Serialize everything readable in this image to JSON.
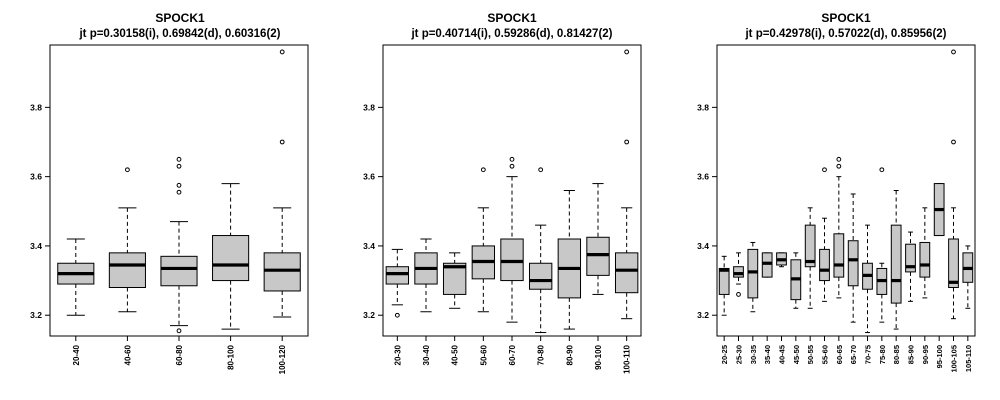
{
  "chart_data": [
    {
      "type": "boxplot",
      "title": "SPOCK1",
      "subtitle": "jt p=0.30158(i), 0.69842(d), 0.60316(2)",
      "xlabel": "",
      "ylabel": "",
      "ylim": [
        3.14,
        3.98
      ],
      "yticks": [
        "3.2",
        "3.4",
        "3.6",
        "3.8"
      ],
      "categories": [
        "20-40",
        "40-60",
        "60-80",
        "80-100",
        "100-120"
      ],
      "boxes": [
        {
          "min": 3.2,
          "q1": 3.29,
          "median": 3.32,
          "q3": 3.35,
          "max": 3.42,
          "outliers": []
        },
        {
          "min": 3.21,
          "q1": 3.28,
          "median": 3.345,
          "q3": 3.38,
          "max": 3.51,
          "outliers": [
            3.62
          ]
        },
        {
          "min": 3.17,
          "q1": 3.285,
          "median": 3.335,
          "q3": 3.37,
          "max": 3.47,
          "outliers": [
            3.155,
            3.555,
            3.575,
            3.63,
            3.65
          ]
        },
        {
          "min": 3.16,
          "q1": 3.3,
          "median": 3.345,
          "q3": 3.43,
          "max": 3.58,
          "outliers": []
        },
        {
          "min": 3.195,
          "q1": 3.27,
          "median": 3.33,
          "q3": 3.38,
          "max": 3.51,
          "outliers": [
            3.7,
            3.96
          ]
        }
      ]
    },
    {
      "type": "boxplot",
      "title": "SPOCK1",
      "subtitle": "jt p=0.40714(i), 0.59286(d), 0.81427(2)",
      "xlabel": "",
      "ylabel": "",
      "ylim": [
        3.14,
        3.98
      ],
      "yticks": [
        "3.2",
        "3.4",
        "3.6",
        "3.8"
      ],
      "categories": [
        "20-30",
        "30-40",
        "40-50",
        "50-60",
        "60-70",
        "70-80",
        "80-90",
        "90-100",
        "100-110"
      ],
      "boxes": [
        {
          "min": 3.23,
          "q1": 3.29,
          "median": 3.32,
          "q3": 3.34,
          "max": 3.39,
          "outliers": [
            3.2
          ]
        },
        {
          "min": 3.21,
          "q1": 3.29,
          "median": 3.335,
          "q3": 3.38,
          "max": 3.42,
          "outliers": []
        },
        {
          "min": 3.22,
          "q1": 3.26,
          "median": 3.34,
          "q3": 3.35,
          "max": 3.38,
          "outliers": []
        },
        {
          "min": 3.21,
          "q1": 3.305,
          "median": 3.355,
          "q3": 3.4,
          "max": 3.51,
          "outliers": [
            3.62
          ]
        },
        {
          "min": 3.18,
          "q1": 3.3,
          "median": 3.355,
          "q3": 3.42,
          "max": 3.6,
          "outliers": [
            3.63,
            3.65
          ]
        },
        {
          "min": 3.15,
          "q1": 3.275,
          "median": 3.3,
          "q3": 3.35,
          "max": 3.46,
          "outliers": [
            3.62
          ]
        },
        {
          "min": 3.16,
          "q1": 3.25,
          "median": 3.335,
          "q3": 3.42,
          "max": 3.56,
          "outliers": []
        },
        {
          "min": 3.26,
          "q1": 3.315,
          "median": 3.375,
          "q3": 3.425,
          "max": 3.58,
          "outliers": []
        },
        {
          "min": 3.19,
          "q1": 3.265,
          "median": 3.33,
          "q3": 3.38,
          "max": 3.51,
          "outliers": [
            3.7,
            3.96
          ]
        }
      ]
    },
    {
      "type": "boxplot",
      "title": "SPOCK1",
      "subtitle": "jt p=0.42978(i), 0.57022(d), 0.85956(2)",
      "xlabel": "",
      "ylabel": "",
      "ylim": [
        3.14,
        3.98
      ],
      "yticks": [
        "3.2",
        "3.4",
        "3.6",
        "3.8"
      ],
      "categories": [
        "20-25",
        "25-30",
        "30-35",
        "35-40",
        "40-45",
        "45-50",
        "50-55",
        "55-60",
        "60-65",
        "65-70",
        "70-75",
        "75-80",
        "80-85",
        "85-90",
        "90-95",
        "95-100",
        "100-105",
        "105-110"
      ],
      "boxes": [
        {
          "min": 3.2,
          "q1": 3.26,
          "median": 3.33,
          "q3": 3.335,
          "max": 3.37,
          "outliers": []
        },
        {
          "min": 3.29,
          "q1": 3.31,
          "median": 3.32,
          "q3": 3.34,
          "max": 3.38,
          "outliers": [
            3.26
          ]
        },
        {
          "min": 3.21,
          "q1": 3.25,
          "median": 3.325,
          "q3": 3.39,
          "max": 3.41,
          "outliers": []
        },
        {
          "min": 3.31,
          "q1": 3.31,
          "median": 3.35,
          "q3": 3.38,
          "max": 3.38,
          "outliers": []
        },
        {
          "min": 3.34,
          "q1": 3.345,
          "median": 3.36,
          "q3": 3.38,
          "max": 3.38,
          "outliers": []
        },
        {
          "min": 3.22,
          "q1": 3.245,
          "median": 3.305,
          "q3": 3.36,
          "max": 3.38,
          "outliers": []
        },
        {
          "min": 3.22,
          "q1": 3.34,
          "median": 3.355,
          "q3": 3.46,
          "max": 3.51,
          "outliers": []
        },
        {
          "min": 3.24,
          "q1": 3.3,
          "median": 3.33,
          "q3": 3.39,
          "max": 3.48,
          "outliers": [
            3.62
          ]
        },
        {
          "min": 3.25,
          "q1": 3.31,
          "median": 3.345,
          "q3": 3.435,
          "max": 3.6,
          "outliers": [
            3.63,
            3.65
          ]
        },
        {
          "min": 3.18,
          "q1": 3.285,
          "median": 3.36,
          "q3": 3.415,
          "max": 3.55,
          "outliers": []
        },
        {
          "min": 3.15,
          "q1": 3.275,
          "median": 3.315,
          "q3": 3.35,
          "max": 3.46,
          "outliers": []
        },
        {
          "min": 3.18,
          "q1": 3.26,
          "median": 3.3,
          "q3": 3.335,
          "max": 3.35,
          "outliers": [
            3.62
          ]
        },
        {
          "min": 3.16,
          "q1": 3.235,
          "median": 3.3,
          "q3": 3.46,
          "max": 3.56,
          "outliers": []
        },
        {
          "min": 3.24,
          "q1": 3.325,
          "median": 3.34,
          "q3": 3.405,
          "max": 3.44,
          "outliers": []
        },
        {
          "min": 3.25,
          "q1": 3.31,
          "median": 3.345,
          "q3": 3.41,
          "max": 3.51,
          "outliers": []
        },
        {
          "min": 3.43,
          "q1": 3.43,
          "median": 3.505,
          "q3": 3.58,
          "max": 3.58,
          "outliers": []
        },
        {
          "min": 3.19,
          "q1": 3.28,
          "median": 3.295,
          "q3": 3.42,
          "max": 3.51,
          "outliers": [
            3.7,
            3.96
          ]
        },
        {
          "min": 3.22,
          "q1": 3.295,
          "median": 3.335,
          "q3": 3.38,
          "max": 3.4,
          "outliers": []
        }
      ]
    }
  ]
}
